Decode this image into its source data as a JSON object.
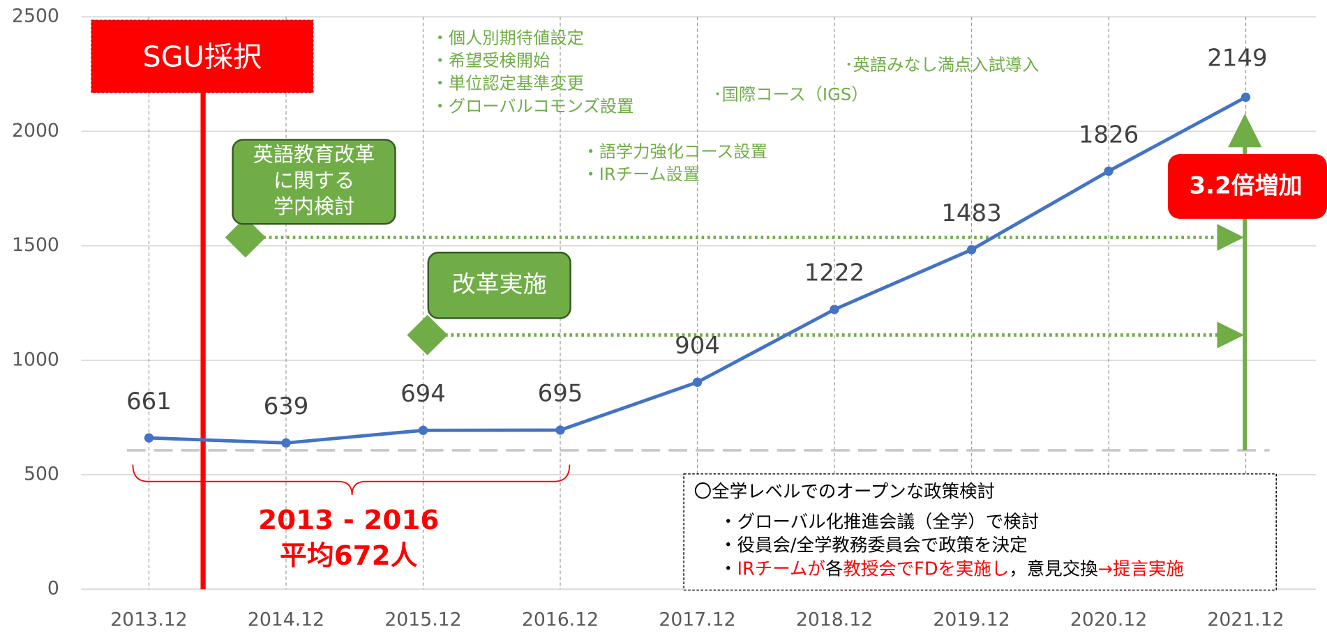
{
  "chart_data": {
    "type": "line",
    "categories": [
      "2013.12",
      "2014.12",
      "2015.12",
      "2016.12",
      "2017.12",
      "2018.12",
      "2019.12",
      "2020.12",
      "2021.12"
    ],
    "series": [
      {
        "color": "#4472c4",
        "values": [
          661,
          639,
          694,
          695,
          904,
          1222,
          1483,
          1826,
          2149
        ]
      }
    ],
    "ylim": [
      0,
      2500
    ],
    "yticks": [
      0,
      500,
      1000,
      1500,
      2000,
      2500
    ],
    "grid": true,
    "annotations": {
      "sgu": "SGU採択",
      "review": [
        "英語教育改革",
        "に関する",
        "学内検討"
      ],
      "implement": "改革実施",
      "notes2015": [
        "・個人別期待値設定",
        "・希望受検開始",
        "・単位認定基準変更",
        "・グローバルコモンズ設置"
      ],
      "notes2017": [
        "・語学力強化コース設置",
        "・IRチーム設置"
      ],
      "igs": "･国際コース（IGS）",
      "exam": "･英語みなし満点入試導入",
      "growth": "3.2倍増加",
      "period": "2013 - 2016",
      "average": "平均672人",
      "policy": {
        "heading": "〇全学レベルでのオープンな政策検討",
        "lines": [
          "・グローバル化推進会議（全学）で検討",
          "・役員会/全学教務委員会で政策を決定"
        ],
        "last": [
          {
            "text": "・",
            "color": "#000000"
          },
          {
            "text": "IRチームが",
            "color": "#ff0000"
          },
          {
            "text": "各",
            "color": "#000000"
          },
          {
            "text": "教授会でFDを実施し",
            "color": "#ff0000"
          },
          {
            "text": "，意見交換",
            "color": "#000000"
          },
          {
            "text": "→提言実施",
            "color": "#ff0000"
          }
        ]
      }
    }
  }
}
